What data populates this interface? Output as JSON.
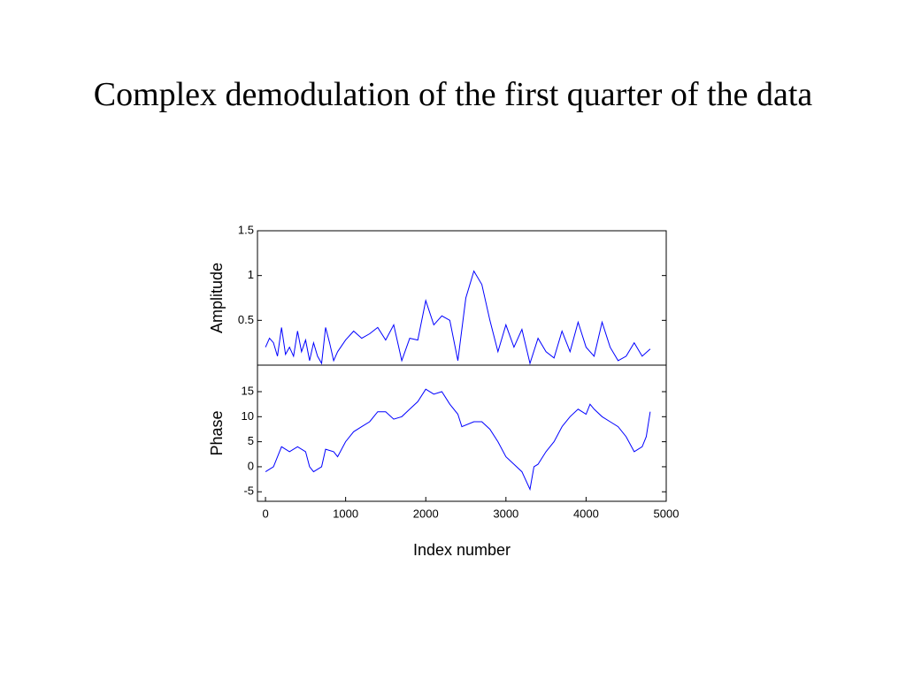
{
  "title": "Complex demodulation of the first quarter of the data",
  "chart_data": [
    {
      "type": "line",
      "ylabel": "Amplitude",
      "xlim": [
        -100,
        5000
      ],
      "ylim": [
        0,
        1.5
      ],
      "yticks": [
        0.5,
        1,
        1.5
      ],
      "x": [
        0,
        50,
        100,
        150,
        200,
        250,
        300,
        350,
        400,
        450,
        500,
        550,
        600,
        650,
        700,
        750,
        800,
        850,
        900,
        1000,
        1100,
        1200,
        1300,
        1400,
        1500,
        1600,
        1700,
        1800,
        1900,
        2000,
        2100,
        2200,
        2300,
        2400,
        2500,
        2600,
        2700,
        2800,
        2900,
        3000,
        3100,
        3200,
        3300,
        3400,
        3500,
        3600,
        3700,
        3800,
        3900,
        4000,
        4100,
        4200,
        4300,
        4400,
        4500,
        4600,
        4700,
        4800
      ],
      "series": [
        {
          "color": "#0000ff",
          "values": [
            0.2,
            0.3,
            0.25,
            0.1,
            0.42,
            0.12,
            0.2,
            0.1,
            0.38,
            0.15,
            0.28,
            0.05,
            0.25,
            0.1,
            0.02,
            0.42,
            0.25,
            0.05,
            0.15,
            0.28,
            0.38,
            0.3,
            0.35,
            0.42,
            0.28,
            0.45,
            0.05,
            0.3,
            0.28,
            0.72,
            0.45,
            0.55,
            0.5,
            0.05,
            0.75,
            1.05,
            0.9,
            0.5,
            0.15,
            0.45,
            0.2,
            0.4,
            0.02,
            0.3,
            0.15,
            0.08,
            0.38,
            0.15,
            0.48,
            0.2,
            0.1,
            0.48,
            0.2,
            0.05,
            0.1,
            0.25,
            0.1,
            0.18
          ]
        }
      ]
    },
    {
      "type": "line",
      "ylabel": "Phase",
      "xlabel": "Index number",
      "xlim": [
        -100,
        5000
      ],
      "xticks": [
        0,
        1000,
        2000,
        3000,
        4000,
        5000
      ],
      "ylim": [
        -6.9,
        20.3
      ],
      "yticks": [
        -5,
        0,
        5,
        10,
        15
      ],
      "x": [
        0,
        100,
        200,
        300,
        400,
        500,
        550,
        600,
        700,
        750,
        850,
        900,
        1000,
        1100,
        1200,
        1300,
        1400,
        1500,
        1600,
        1700,
        1800,
        1900,
        2000,
        2100,
        2200,
        2300,
        2400,
        2450,
        2600,
        2700,
        2800,
        2900,
        3000,
        3100,
        3200,
        3300,
        3350,
        3400,
        3500,
        3600,
        3700,
        3800,
        3900,
        4000,
        4050,
        4100,
        4200,
        4300,
        4400,
        4500,
        4600,
        4700,
        4750,
        4800
      ],
      "series": [
        {
          "color": "#0000ff",
          "values": [
            -1,
            0,
            4,
            3,
            4,
            3,
            0,
            -1,
            0,
            3.5,
            3,
            2,
            5,
            7,
            8,
            9,
            11,
            11,
            9.5,
            10,
            11.5,
            13,
            15.5,
            14.5,
            15,
            12.5,
            10.5,
            8,
            9,
            9,
            7.5,
            5,
            2,
            0.5,
            -1,
            -4.5,
            0,
            0.5,
            3,
            5,
            8,
            10,
            11.5,
            10.5,
            12.5,
            11.5,
            10,
            9,
            8,
            6,
            3,
            4,
            6,
            11
          ]
        }
      ]
    }
  ]
}
